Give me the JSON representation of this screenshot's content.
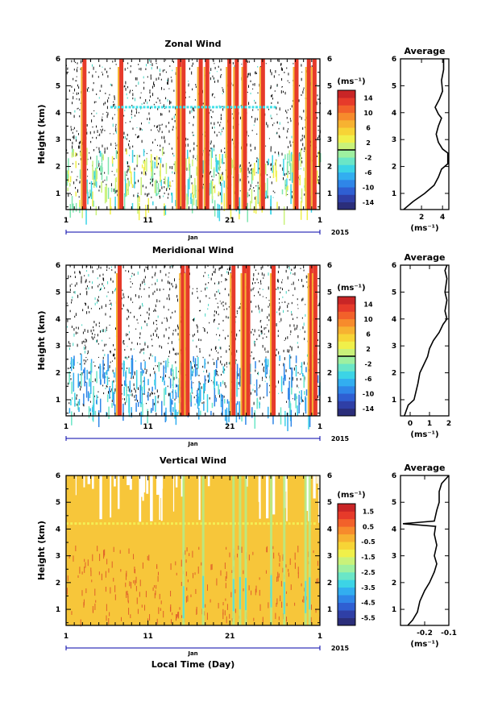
{
  "chart_data": [
    {
      "type": "heatmap",
      "title": "Zonal Wind",
      "xlabel": "",
      "ylabel": "Height (km)",
      "x_ticks": [
        "1",
        "11",
        "21",
        "1"
      ],
      "xlim": [
        1,
        32
      ],
      "y_ticks": [
        "1",
        "2",
        "3",
        "4",
        "5",
        "6"
      ],
      "ylim": [
        0.4,
        6
      ],
      "date_label": "Jan",
      "year_label": "2015",
      "colorbar": {
        "unit": "(ms⁻¹)",
        "range": [
          -16,
          16
        ],
        "tick_labels": [
          "14",
          "10",
          "6",
          "2",
          "-2",
          "-6",
          "-10",
          "-14"
        ],
        "tick_values": [
          14,
          10,
          6,
          2,
          -2,
          -6,
          -10,
          -14
        ],
        "levels": 16,
        "zero_marker": 0
      },
      "average_panel": {
        "title": "Average",
        "xlabel": "(ms⁻¹)",
        "x_ticks": [
          "2",
          "4"
        ],
        "x_tick_values": [
          2,
          4
        ],
        "xlim": [
          0,
          4.6
        ],
        "profile": [
          [
            0.3,
            0.4
          ],
          [
            1.2,
            0.7
          ],
          [
            2.3,
            1.0
          ],
          [
            3.2,
            1.3
          ],
          [
            3.6,
            1.6
          ],
          [
            3.9,
            1.9
          ],
          [
            4.5,
            2.1
          ],
          [
            4.5,
            2.5
          ],
          [
            4.0,
            2.65
          ],
          [
            3.6,
            2.9
          ],
          [
            3.4,
            3.2
          ],
          [
            3.6,
            3.5
          ],
          [
            3.9,
            3.8
          ],
          [
            3.6,
            3.95
          ],
          [
            3.3,
            4.2
          ],
          [
            3.7,
            4.5
          ],
          [
            4.0,
            4.8
          ],
          [
            3.9,
            5.2
          ],
          [
            4.1,
            5.6
          ],
          [
            4.1,
            6.0
          ]
        ]
      }
    },
    {
      "type": "heatmap",
      "title": "Meridional Wind",
      "xlabel": "",
      "ylabel": "Height (km)",
      "x_ticks": [
        "1",
        "11",
        "21",
        "1"
      ],
      "xlim": [
        1,
        32
      ],
      "y_ticks": [
        "1",
        "2",
        "3",
        "4",
        "5",
        "6"
      ],
      "ylim": [
        0.4,
        6
      ],
      "date_label": "Jan",
      "year_label": "2015",
      "colorbar": {
        "unit": "(ms⁻¹)",
        "range": [
          -16,
          16
        ],
        "tick_labels": [
          "14",
          "10",
          "6",
          "2",
          "-2",
          "-6",
          "-10",
          "-14"
        ],
        "tick_values": [
          14,
          10,
          6,
          2,
          -2,
          -6,
          -10,
          -14
        ],
        "levels": 16,
        "zero_marker": 0
      },
      "average_panel": {
        "title": "Average",
        "xlabel": "(ms⁻¹)",
        "x_ticks": [
          "0",
          "1",
          "2"
        ],
        "x_tick_values": [
          0,
          1,
          2
        ],
        "xlim": [
          -0.5,
          2
        ],
        "profile": [
          [
            -0.3,
            0.4
          ],
          [
            -0.1,
            0.8
          ],
          [
            0.2,
            1.0
          ],
          [
            0.3,
            1.3
          ],
          [
            0.4,
            1.6
          ],
          [
            0.5,
            2.0
          ],
          [
            0.7,
            2.3
          ],
          [
            0.9,
            2.6
          ],
          [
            1.0,
            2.9
          ],
          [
            1.2,
            3.2
          ],
          [
            1.5,
            3.5
          ],
          [
            1.7,
            3.8
          ],
          [
            1.9,
            4.0
          ],
          [
            1.8,
            4.3
          ],
          [
            1.9,
            4.7
          ],
          [
            1.8,
            5.0
          ],
          [
            1.9,
            5.5
          ],
          [
            1.8,
            5.8
          ],
          [
            1.9,
            6.0
          ]
        ]
      }
    },
    {
      "type": "heatmap",
      "title": "Vertical Wind",
      "xlabel": "Local Time (Day)",
      "ylabel": "Height (km)",
      "x_ticks": [
        "1",
        "11",
        "21",
        "1"
      ],
      "xlim": [
        1,
        32
      ],
      "y_ticks": [
        "1",
        "2",
        "3",
        "4",
        "5",
        "6"
      ],
      "ylim": [
        0.4,
        6
      ],
      "date_label": "Jan",
      "year_label": "2015",
      "colorbar": {
        "unit": "(ms⁻¹)",
        "range": [
          -6,
          2
        ],
        "tick_labels": [
          "1.5",
          "0.5",
          "-0.5",
          "-1.5",
          "-2.5",
          "-3.5",
          "-4.5",
          "-5.5"
        ],
        "tick_values": [
          1.5,
          0.5,
          -0.5,
          -1.5,
          -2.5,
          -3.5,
          -4.5,
          -5.5
        ],
        "levels": 16,
        "zero_marker": null
      },
      "average_panel": {
        "title": "Average",
        "xlabel": "(ms⁻¹)",
        "x_ticks": [
          "-0.2",
          "-0.1"
        ],
        "x_tick_values": [
          -0.2,
          -0.1
        ],
        "xlim": [
          -0.3,
          -0.1
        ],
        "profile": [
          [
            -0.27,
            0.4
          ],
          [
            -0.25,
            0.6
          ],
          [
            -0.23,
            0.9
          ],
          [
            -0.22,
            1.3
          ],
          [
            -0.2,
            1.7
          ],
          [
            -0.18,
            2.0
          ],
          [
            -0.16,
            2.4
          ],
          [
            -0.15,
            2.7
          ],
          [
            -0.16,
            3.0
          ],
          [
            -0.15,
            3.4
          ],
          [
            -0.16,
            3.8
          ],
          [
            -0.155,
            4.1
          ],
          [
            -0.29,
            4.2
          ],
          [
            -0.16,
            4.3
          ],
          [
            -0.15,
            4.7
          ],
          [
            -0.14,
            5.0
          ],
          [
            -0.14,
            5.4
          ],
          [
            -0.13,
            5.7
          ],
          [
            -0.1,
            6.0
          ]
        ]
      }
    }
  ]
}
